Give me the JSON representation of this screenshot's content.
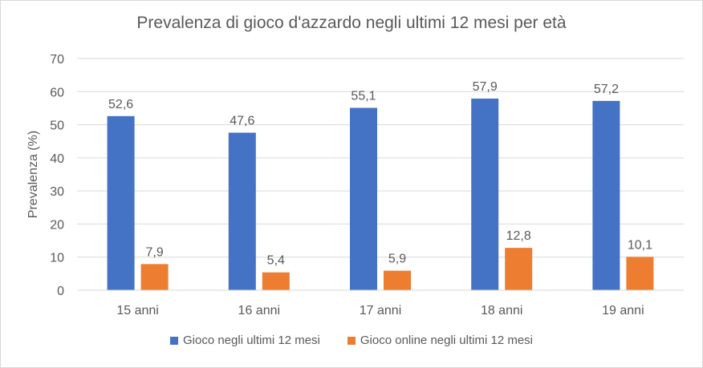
{
  "chart_data": {
    "type": "bar",
    "title": "Prevalenza di gioco d'azzardo negli ultimi 12 mesi per età",
    "xlabel": "",
    "ylabel": "Prevalenza (%)",
    "ylim": [
      0,
      70
    ],
    "yticks": [
      0,
      10,
      20,
      30,
      40,
      50,
      60,
      70
    ],
    "grid": true,
    "legend_position": "bottom",
    "categories": [
      "15 anni",
      "16 anni",
      "17 anni",
      "18 anni",
      "19 anni"
    ],
    "series": [
      {
        "name": "Gioco negli ultimi 12 mesi",
        "color": "#4472c4",
        "values": [
          52.6,
          47.6,
          55.1,
          57.9,
          57.2
        ],
        "labels": [
          "52,6",
          "47,6",
          "55,1",
          "57,9",
          "57,2"
        ]
      },
      {
        "name": "Gioco online negli ultimi 12 mesi",
        "color": "#ed7d31",
        "values": [
          7.9,
          5.4,
          5.9,
          12.8,
          10.1
        ],
        "labels": [
          "7,9",
          "5,4",
          "5,9",
          "12,8",
          "10,1"
        ]
      }
    ]
  }
}
